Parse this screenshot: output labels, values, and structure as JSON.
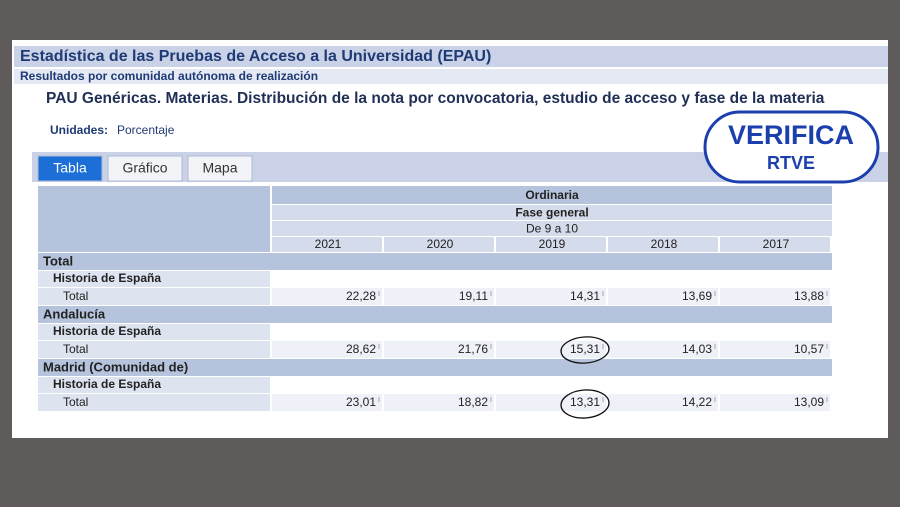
{
  "header": {
    "title": "Estadística de las Pruebas de Acceso a la Universidad (EPAU)",
    "subtitle": "Resultados por comunidad autónoma de realización",
    "heading": "PAU Genéricas. Materias. Distribución de la nota por convocatoria, estudio de acceso y fase de la materia",
    "units_label": "Unidades:",
    "units": "Porcentaje"
  },
  "tabs": [
    "Tabla",
    "Gráfico",
    "Mapa"
  ],
  "badge": {
    "line1": "VERIFICA",
    "line2": "RTVE"
  },
  "table": {
    "convocatoria": "Ordinaria",
    "fase": "Fase general",
    "nota": "De 9 a 10",
    "years": [
      "2021",
      "2020",
      "2019",
      "2018",
      "2017"
    ],
    "groups": [
      {
        "name": "Total",
        "subject": "Historia de España",
        "row_label": "Total",
        "values": [
          "22,28",
          "19,11",
          "14,31",
          "13,69",
          "13,88"
        ]
      },
      {
        "name": "Andalucía",
        "subject": "Historia de España",
        "row_label": "Total",
        "values": [
          "28,62",
          "21,76",
          "15,31",
          "14,03",
          "10,57"
        ]
      },
      {
        "name": "Madrid (Comunidad de)",
        "subject": "Historia de España",
        "row_label": "Total",
        "values": [
          "23,01",
          "18,82",
          "13,31",
          "14,22",
          "13,09"
        ]
      }
    ]
  }
}
